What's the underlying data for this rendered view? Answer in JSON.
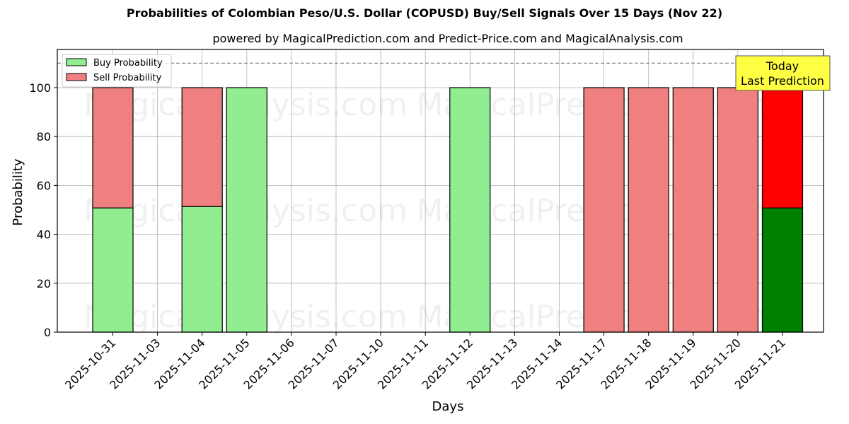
{
  "chart_data": {
    "type": "bar",
    "stacked": true,
    "title": "Probabilities of Colombian Peso/U.S. Dollar (COPUSD) Buy/Sell Signals Over 15 Days (Nov 22)",
    "subtitle": "powered by MagicalPrediction.com and Predict-Price.com and MagicalAnalysis.com",
    "xlabel": "Days",
    "ylabel": "Probability",
    "ylim": [
      0,
      115.6
    ],
    "yticks": [
      0,
      20,
      40,
      60,
      80,
      100
    ],
    "grid": true,
    "reference_line": {
      "y": 110,
      "style": "dashed",
      "color": "#808080"
    },
    "categories": [
      "2025-10-31",
      "2025-11-03",
      "2025-11-04",
      "2025-11-05",
      "2025-11-06",
      "2025-11-07",
      "2025-11-10",
      "2025-11-11",
      "2025-11-12",
      "2025-11-13",
      "2025-11-14",
      "2025-11-17",
      "2025-11-18",
      "2025-11-19",
      "2025-11-20",
      "2025-11-21"
    ],
    "bars": [
      {
        "slot": 0,
        "buy": 50.8,
        "sell": 49.2,
        "highlight": false
      },
      {
        "slot": 2,
        "buy": 51.4,
        "sell": 48.6,
        "highlight": false
      },
      {
        "slot": 3,
        "buy": 100,
        "sell": 0,
        "highlight": false
      },
      {
        "slot": 8,
        "buy": 100,
        "sell": 0,
        "highlight": false
      },
      {
        "slot": 11,
        "buy": 0,
        "sell": 100,
        "highlight": false
      },
      {
        "slot": 12,
        "buy": 0,
        "sell": 100,
        "highlight": false
      },
      {
        "slot": 13,
        "buy": 0,
        "sell": 100,
        "highlight": false
      },
      {
        "slot": 14,
        "buy": 0,
        "sell": 100,
        "highlight": false
      },
      {
        "slot": 15,
        "buy": 50.8,
        "sell": 49.2,
        "highlight": true
      }
    ],
    "series": [
      {
        "name": "Buy Probability",
        "color": "#90ee90",
        "highlight_color": "#008000"
      },
      {
        "name": "Sell Probability",
        "color": "#f08080",
        "highlight_color": "#ff0000"
      }
    ],
    "legend": {
      "position": "upper left",
      "entries": [
        "Buy Probability",
        "Sell Probability"
      ]
    },
    "annotation": {
      "line1": "Today",
      "line2": "Last Prediction",
      "bg": "#ffff44"
    },
    "watermarks": [
      "MagicalAnalysis.com",
      "MagicalPrediction.com"
    ]
  }
}
